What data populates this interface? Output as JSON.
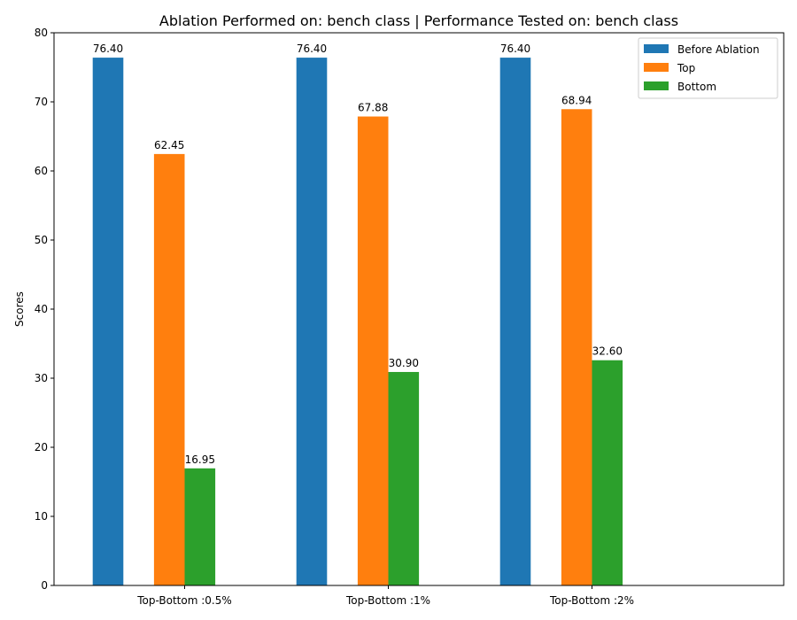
{
  "chart_data": {
    "type": "bar",
    "title": "Ablation Performed on: bench class | Performance Tested on: bench class",
    "xlabel": "",
    "ylabel": "Scores",
    "categories": [
      "Top-Bottom :0.5%",
      "Top-Bottom :1%",
      "Top-Bottom :2%"
    ],
    "series": [
      {
        "name": "Before Ablation",
        "color": "#1f77b4",
        "values": [
          76.4,
          76.4,
          76.4
        ],
        "labels": [
          "76.40",
          "76.40",
          "76.40"
        ]
      },
      {
        "name": "Top",
        "color": "#ff7f0e",
        "values": [
          62.45,
          67.88,
          68.94
        ],
        "labels": [
          "62.45",
          "67.88",
          "68.94"
        ]
      },
      {
        "name": "Bottom",
        "color": "#2ca02c",
        "values": [
          16.95,
          30.9,
          32.6
        ],
        "labels": [
          "16.95",
          "30.90",
          "32.60"
        ]
      }
    ],
    "ylim": [
      0,
      80
    ],
    "yticks": [
      "0",
      "10",
      "20",
      "30",
      "40",
      "50",
      "60",
      "70",
      "80"
    ],
    "grid": false,
    "legend_position": "top-right"
  }
}
